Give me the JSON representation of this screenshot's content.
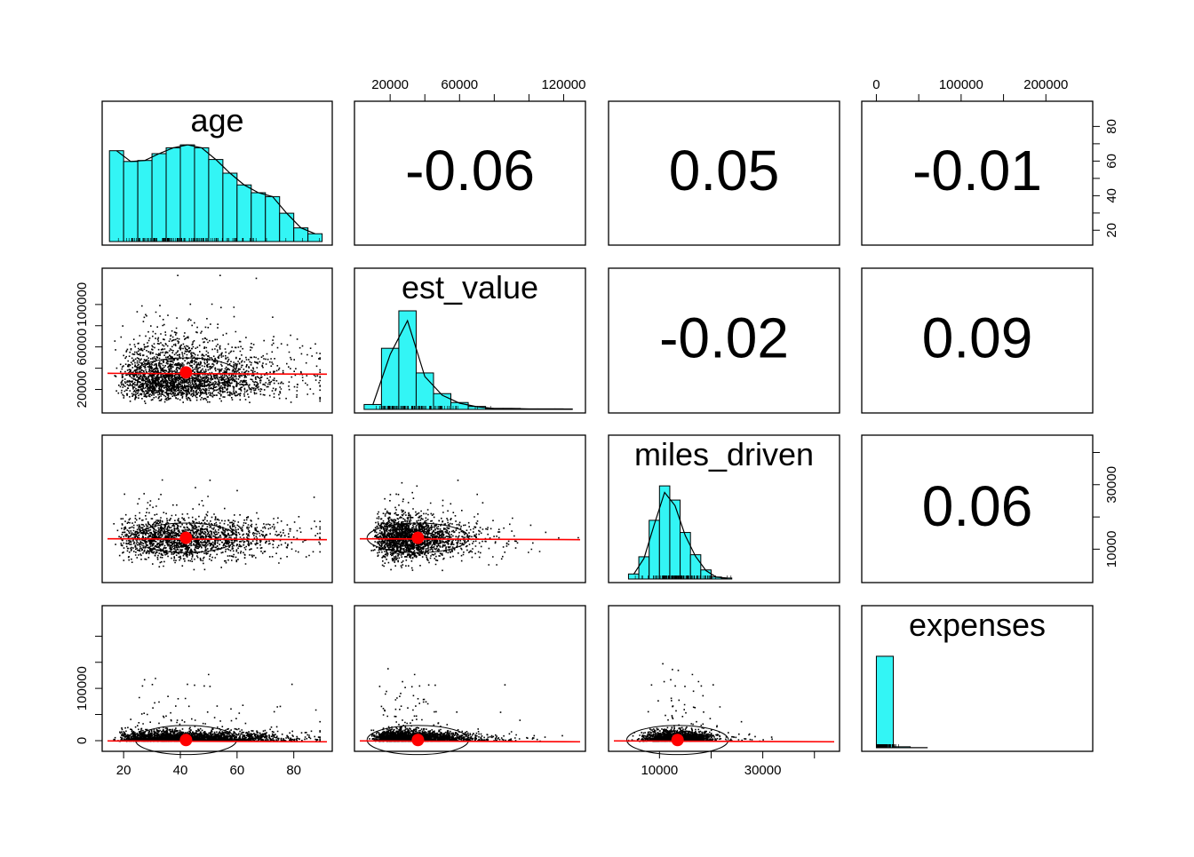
{
  "chart_data": {
    "type": "pairs-panel",
    "variables": [
      "age",
      "est_value",
      "miles_driven",
      "expenses"
    ],
    "hist_color": "#33f5f5",
    "loess_color": "#ff0000",
    "ellipse_center_color": "#ff0000",
    "correlations": [
      {
        "row": 0,
        "col": 1,
        "label": "-0.06",
        "value": -0.06
      },
      {
        "row": 0,
        "col": 2,
        "label": "0.05",
        "value": 0.05
      },
      {
        "row": 0,
        "col": 3,
        "label": "-0.01",
        "value": -0.01
      },
      {
        "row": 1,
        "col": 2,
        "label": "-0.02",
        "value": -0.02
      },
      {
        "row": 1,
        "col": 3,
        "label": "0.09",
        "value": 0.09
      },
      {
        "row": 2,
        "col": 3,
        "label": "0.06",
        "value": 0.06
      }
    ],
    "axes": {
      "age": {
        "range": [
          14,
          92
        ],
        "ticks": [
          20,
          40,
          60,
          80
        ],
        "tick_labels": [
          "20",
          "40",
          "60",
          "80"
        ]
      },
      "est_value": {
        "range": [
          2000,
          130000
        ],
        "ticks": [
          20000,
          40000,
          60000,
          80000,
          100000,
          120000
        ],
        "tick_labels": [
          "20000",
          "",
          "60000",
          "",
          "",
          "120000"
        ],
        "left_tick_labels": [
          "20000",
          "",
          "60000",
          "",
          "100000",
          ""
        ]
      },
      "miles_driven": {
        "range": [
          1000,
          44000
        ],
        "ticks": [
          10000,
          20000,
          30000,
          40000
        ],
        "tick_labels": [
          "10000",
          "",
          "30000",
          ""
        ]
      },
      "expenses": {
        "range": [
          -12000,
          250000
        ],
        "ticks": [
          0,
          50000,
          100000,
          150000,
          200000
        ],
        "tick_labels": [
          "0",
          "",
          "100000",
          "",
          "200000"
        ],
        "left_tick_labels": [
          "0",
          "",
          "100000",
          "",
          ""
        ]
      }
    },
    "histograms": {
      "age": {
        "bins": [
          15,
          20,
          25,
          30,
          35,
          40,
          45,
          50,
          55,
          60,
          65,
          70,
          75,
          80,
          85,
          90
        ],
        "counts": [
          0.93,
          0.82,
          0.83,
          0.9,
          0.96,
          0.99,
          0.96,
          0.84,
          0.7,
          0.58,
          0.5,
          0.46,
          0.29,
          0.14,
          0.08
        ],
        "density_peak": 1.0
      },
      "est_value": {
        "bins": [
          5000,
          15000,
          25000,
          35000,
          45000,
          55000,
          65000,
          75000,
          85000,
          95000,
          105000,
          115000,
          125000
        ],
        "counts": [
          0.05,
          0.62,
          1.0,
          0.37,
          0.16,
          0.07,
          0.03,
          0.01,
          0.01,
          0.005,
          0.005,
          0.005
        ],
        "density_peak": 0.9
      },
      "miles_driven": {
        "bins": [
          4000,
          6000,
          8000,
          10000,
          12000,
          14000,
          16000,
          18000,
          20000,
          22000,
          24000
        ],
        "counts": [
          0.05,
          0.22,
          0.58,
          0.92,
          0.78,
          0.46,
          0.24,
          0.09,
          0.02,
          0.01
        ],
        "density_peak": 0.93
      },
      "expenses": {
        "bins": [
          0,
          20000,
          40000,
          60000
        ],
        "counts": [
          0.92,
          0.01,
          0.002
        ],
        "density_peak": 0.0
      }
    },
    "means": {
      "age": 42,
      "est_value": 36000,
      "miles_driven": 13500,
      "expenses": 1200
    }
  }
}
